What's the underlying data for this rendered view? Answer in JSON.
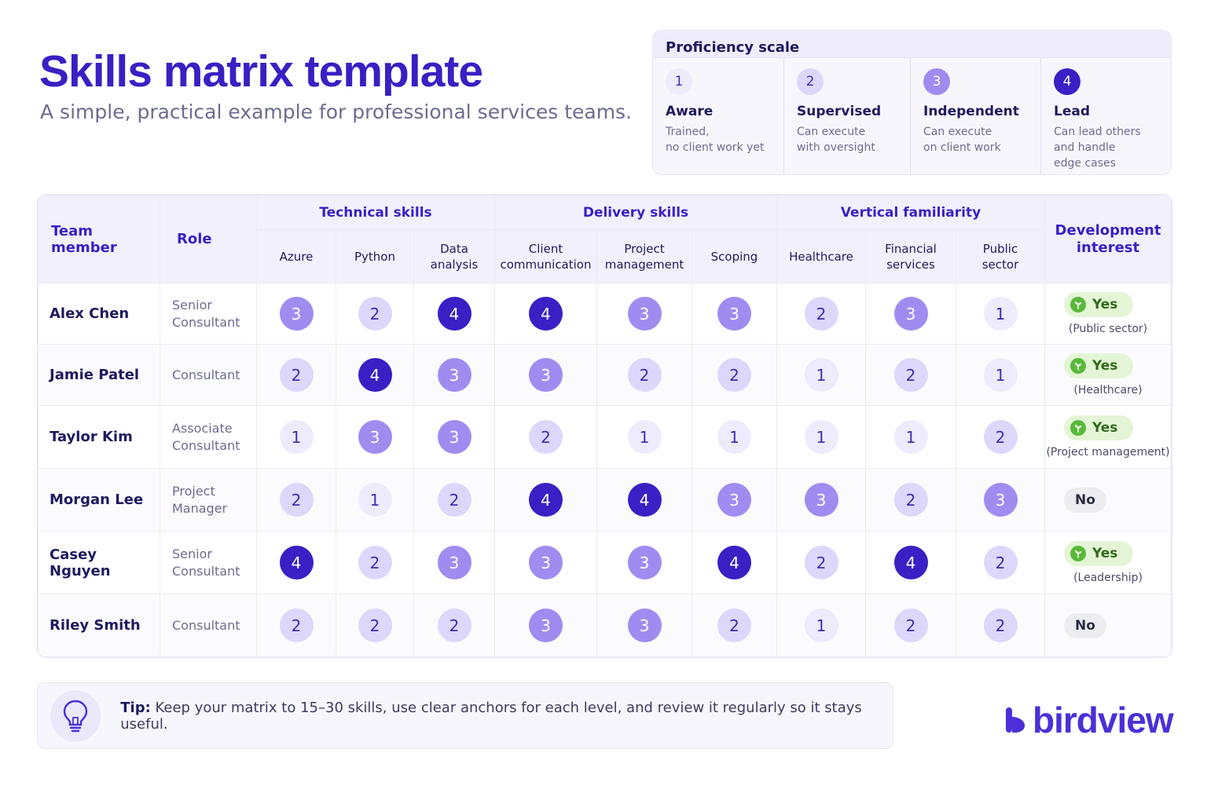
{
  "header": {
    "title": "Skills matrix template",
    "subtitle": "A simple, practical example for professional services teams."
  },
  "scale": {
    "title": "Proficiency scale",
    "levels": [
      {
        "number": "1",
        "name": "Aware",
        "desc": "Trained,\nno client work yet"
      },
      {
        "number": "2",
        "name": "Supervised",
        "desc": "Can execute\nwith oversight"
      },
      {
        "number": "3",
        "name": "Independent",
        "desc": "Can execute\non client work"
      },
      {
        "number": "4",
        "name": "Lead",
        "desc": "Can lead others\nand handle\nedge cases"
      }
    ]
  },
  "matrix": {
    "head_member": "Team member",
    "head_role": "Role",
    "groups": [
      "Technical skills",
      "Delivery skills",
      "Vertical familiarity"
    ],
    "skills": [
      "Azure",
      "Python",
      "Data\nanalysis",
      "Client\ncommunication",
      "Project\nmanagement",
      "Scoping",
      "Healthcare",
      "Financial\nservices",
      "Public\nsector"
    ],
    "head_dev": "Development\ninterest",
    "rows": [
      {
        "name": "Alex Chen",
        "role": "Senior\nConsultant",
        "scores": [
          3,
          2,
          4,
          4,
          3,
          3,
          2,
          3,
          1
        ],
        "dev": "Yes",
        "dev_note": "(Public sector)"
      },
      {
        "name": "Jamie Patel",
        "role": "Consultant",
        "scores": [
          2,
          4,
          3,
          3,
          2,
          2,
          1,
          2,
          1
        ],
        "dev": "Yes",
        "dev_note": "(Healthcare)"
      },
      {
        "name": "Taylor Kim",
        "role": "Associate\nConsultant",
        "scores": [
          1,
          3,
          3,
          2,
          1,
          1,
          1,
          1,
          2
        ],
        "dev": "Yes",
        "dev_note": "(Project management)"
      },
      {
        "name": "Morgan Lee",
        "role": "Project\nManager",
        "scores": [
          2,
          1,
          2,
          4,
          4,
          3,
          3,
          2,
          3
        ],
        "dev": "No",
        "dev_note": ""
      },
      {
        "name": "Casey Nguyen",
        "role": "Senior\nConsultant",
        "scores": [
          4,
          2,
          3,
          3,
          3,
          4,
          2,
          4,
          2
        ],
        "dev": "Yes",
        "dev_note": "(Leadership)"
      },
      {
        "name": "Riley Smith",
        "role": "Consultant",
        "scores": [
          2,
          2,
          2,
          3,
          3,
          2,
          1,
          2,
          2
        ],
        "dev": "No",
        "dev_note": ""
      }
    ]
  },
  "tip": {
    "label": "Tip:",
    "text": " Keep your matrix to 15–30 skills, use clear anchors for each level, and review it regularly so it stays useful."
  },
  "logo": {
    "word": "birdview"
  },
  "colors": {
    "brand": "#3a1fc4",
    "level1": "#eeebfd",
    "level2": "#ddd7fb",
    "level3": "#a08cf0",
    "level4": "#3a1fc4",
    "yes": "#58b93a"
  }
}
